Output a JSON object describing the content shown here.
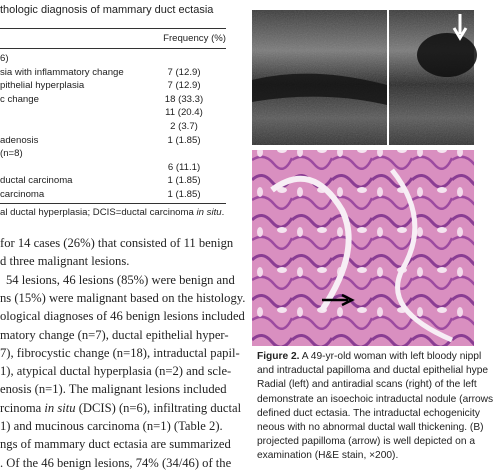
{
  "table": {
    "title": "thologic diagnosis of mammary duct ectasia",
    "header": "Frequency (%)",
    "rows": [
      {
        "label": "6)"
      },
      {
        "label": "sia with inflammatory change",
        "frequency": "7 (12.9)"
      },
      {
        "label": "pithelial hyperplasia",
        "frequency": "7 (12.9)"
      },
      {
        "label": "c change",
        "frequency": "18 (33.3)"
      },
      {
        "frequency": "11 (20.4)"
      },
      {
        "frequency": "2 (3.7)"
      },
      {
        "label": "adenosis",
        "frequency": "1 (1.85)"
      },
      {
        "label": "(n=8)"
      },
      {
        "frequency": "6 (11.1)"
      },
      {
        "label": "ductal carcinoma",
        "frequency": "1 (1.85)"
      },
      {
        "label": "carcinoma",
        "frequency": "1 (1.85)"
      }
    ],
    "footnote": [
      "al ductal hyperplasia; DCIS=ductal carcinoma ",
      "in situ",
      "."
    ]
  },
  "body": {
    "lines": [
      "for 14 cases (26%) that consisted of 11 benign",
      "d three malignant lesions.",
      "54 lesions, 46 lesions (85%) were benign and",
      "ns (15%) were malignant based on the histology.",
      "ological diagnoses of 46 benign lesions included",
      "matory change (n=7), ductal epithelial hyper-",
      "7), fibrocystic change (n=18), intraductal papil-",
      "1), atypical ductal hyperplasia (n=2) and scle-",
      "enosis (n=1). The malignant lesions included",
      [
        "rcinoma ",
        "in situ",
        " (DCIS) (n=6), infiltrating ductal"
      ],
      "1) and mucinous carcinoma (n=1) (Table 2).",
      "ngs of mammary duct ectasia are summarized",
      ". Of the 46 benign lesions, 74% (34/46) of the"
    ]
  },
  "figure": {
    "caption": [
      [
        "Figure 2.",
        " A 49-yr-old woman with left bloody nippl"
      ],
      "and intraductal papilloma and ductal epithelial hype",
      "Radial (left) and antiradial scans (right) of the left",
      "demonstrate an isoechoic intraductal nodule (arrows",
      "defined duct ectasia. The intraductal echogenicity",
      "neous with no abnormal ductal wall thickening. (B)",
      "projected papilloma (arrow) is well depicted on a",
      "examination (H&E stain, ×200)."
    ]
  }
}
